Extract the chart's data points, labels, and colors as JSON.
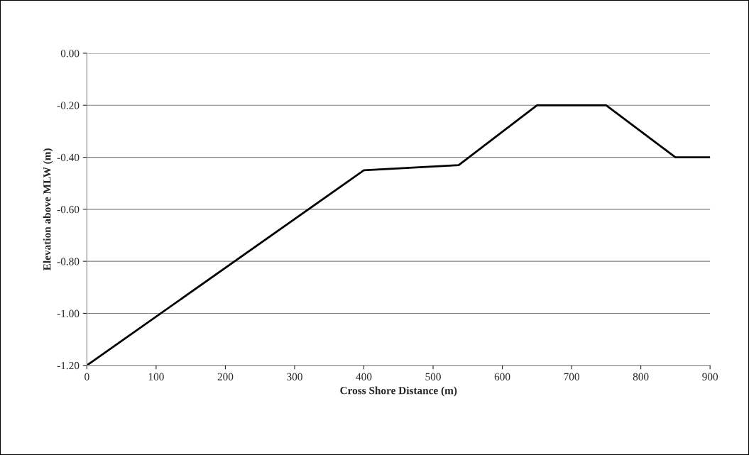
{
  "chart_data": {
    "type": "line",
    "xlabel": "Cross Shore Distance (m)",
    "ylabel": "Elevation above MLW (m)",
    "x": [
      0,
      400,
      537,
      650,
      750,
      850,
      900
    ],
    "series": [
      {
        "color": "#000000",
        "values": [
          -1.2,
          -0.45,
          -0.43,
          -0.2,
          -0.2,
          -0.4,
          -0.4
        ]
      }
    ],
    "xlim": [
      0,
      900
    ],
    "xticks": [
      0,
      100,
      200,
      300,
      400,
      500,
      600,
      700,
      800,
      900
    ],
    "ylim": [
      -1.2,
      0
    ],
    "yticks": [
      {
        "value": -1.2,
        "label": "-1.20"
      },
      {
        "value": -1.0,
        "label": "-1.00"
      },
      {
        "value": -0.8,
        "label": "-0.80"
      },
      {
        "value": -0.6,
        "label": "-0.60"
      },
      {
        "value": -0.4,
        "label": "-0.40"
      },
      {
        "value": -0.2,
        "label": "-0.20"
      },
      {
        "value": 0,
        "label": "0.00"
      }
    ],
    "grid": "y",
    "legend": false,
    "marker": "none",
    "line_style": "solid"
  }
}
